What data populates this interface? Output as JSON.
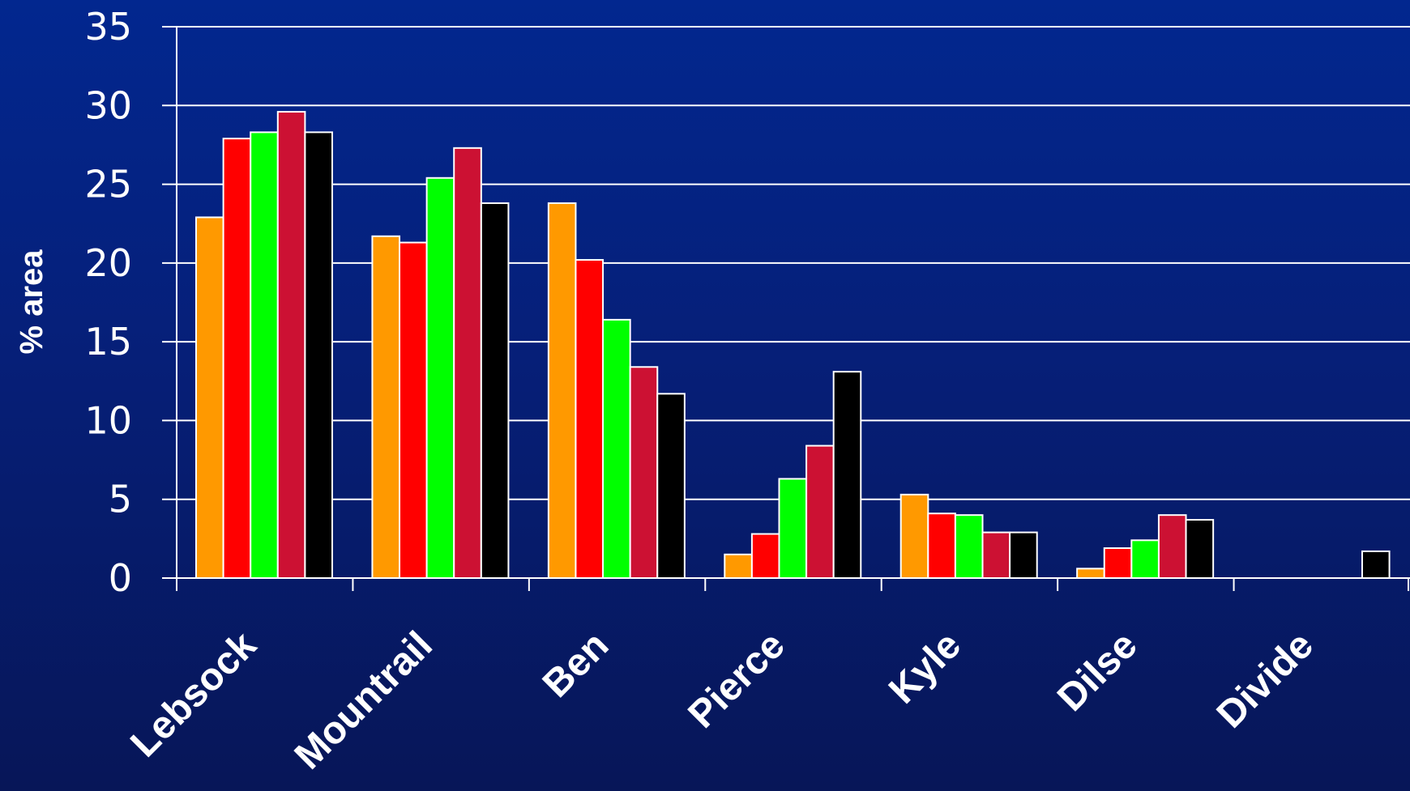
{
  "chart_data": {
    "type": "bar",
    "title": "",
    "xlabel": "",
    "ylabel": "% area",
    "ylim": [
      0,
      35
    ],
    "yticks": [
      "0",
      "5",
      "10",
      "15",
      "20",
      "25",
      "30",
      "35"
    ],
    "grid": true,
    "legend": "none",
    "categories": [
      "Lebsock",
      "Mountrail",
      "Ben",
      "Pierce",
      "Kyle",
      "Dilse",
      "Divide"
    ],
    "series": [
      {
        "color": "#ff9900",
        "values": [
          22.9,
          21.7,
          23.8,
          1.5,
          5.3,
          0.6,
          0
        ]
      },
      {
        "color": "#ff0000",
        "values": [
          27.9,
          21.3,
          20.2,
          2.8,
          4.1,
          1.9,
          0
        ]
      },
      {
        "color": "#00ff00",
        "values": [
          28.3,
          25.4,
          16.4,
          6.3,
          4.0,
          2.4,
          0
        ]
      },
      {
        "color": "#cc1133",
        "values": [
          29.6,
          27.3,
          13.4,
          8.4,
          2.9,
          4.0,
          0
        ]
      },
      {
        "color": "#000000",
        "values": [
          28.3,
          23.8,
          11.7,
          13.1,
          2.9,
          3.7,
          1.7
        ]
      }
    ]
  }
}
